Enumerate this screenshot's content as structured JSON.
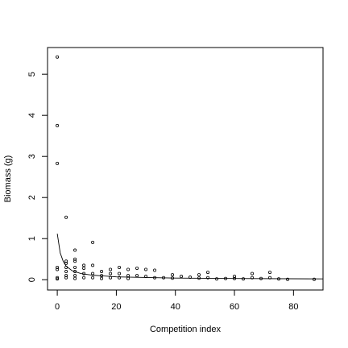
{
  "chart_data": {
    "type": "scatter",
    "xlabel": "Competition index",
    "ylabel": "Biomass (g)",
    "xlim": [
      -3.3,
      90
    ],
    "ylim": [
      -0.25,
      5.65
    ],
    "xticks": [
      0,
      20,
      40,
      60,
      80
    ],
    "yticks": [
      0,
      1,
      2,
      3,
      4,
      5
    ],
    "color": "#000000",
    "points": {
      "x": [
        0,
        0,
        0,
        0,
        0,
        0,
        0,
        3,
        3,
        3,
        3,
        3,
        3,
        3,
        6,
        6,
        6,
        6,
        6,
        6,
        6,
        9,
        9,
        9,
        9,
        12,
        12,
        12,
        12,
        15,
        15,
        15,
        18,
        18,
        18,
        21,
        21,
        21,
        24,
        24,
        24,
        27,
        27,
        30,
        30,
        33,
        33,
        36,
        39,
        39,
        42,
        45,
        48,
        48,
        51,
        51,
        54,
        57,
        60,
        60,
        63,
        66,
        66,
        69,
        72,
        72,
        75,
        78,
        87
      ],
      "values": [
        5.42,
        3.75,
        2.83,
        0.3,
        0.25,
        0.05,
        0.02,
        1.52,
        0.45,
        0.4,
        0.3,
        0.2,
        0.1,
        0.05,
        0.72,
        0.5,
        0.45,
        0.3,
        0.2,
        0.1,
        0.03,
        0.35,
        0.28,
        0.15,
        0.05,
        0.91,
        0.35,
        0.15,
        0.05,
        0.2,
        0.1,
        0.03,
        0.25,
        0.15,
        0.05,
        0.3,
        0.15,
        0.05,
        0.25,
        0.1,
        0.03,
        0.28,
        0.1,
        0.25,
        0.08,
        0.23,
        0.05,
        0.05,
        0.12,
        0.04,
        0.08,
        0.06,
        0.12,
        0.04,
        0.18,
        0.05,
        0.02,
        0.03,
        0.08,
        0.03,
        0.02,
        0.15,
        0.05,
        0.03,
        0.18,
        0.05,
        0.02,
        0.01,
        0.01
      ]
    },
    "fit": {
      "x": [
        0,
        1,
        2,
        3,
        5,
        8,
        12,
        20,
        40,
        60,
        90
      ],
      "values": [
        1.12,
        0.65,
        0.45,
        0.33,
        0.22,
        0.15,
        0.11,
        0.07,
        0.04,
        0.03,
        0.02
      ]
    }
  }
}
